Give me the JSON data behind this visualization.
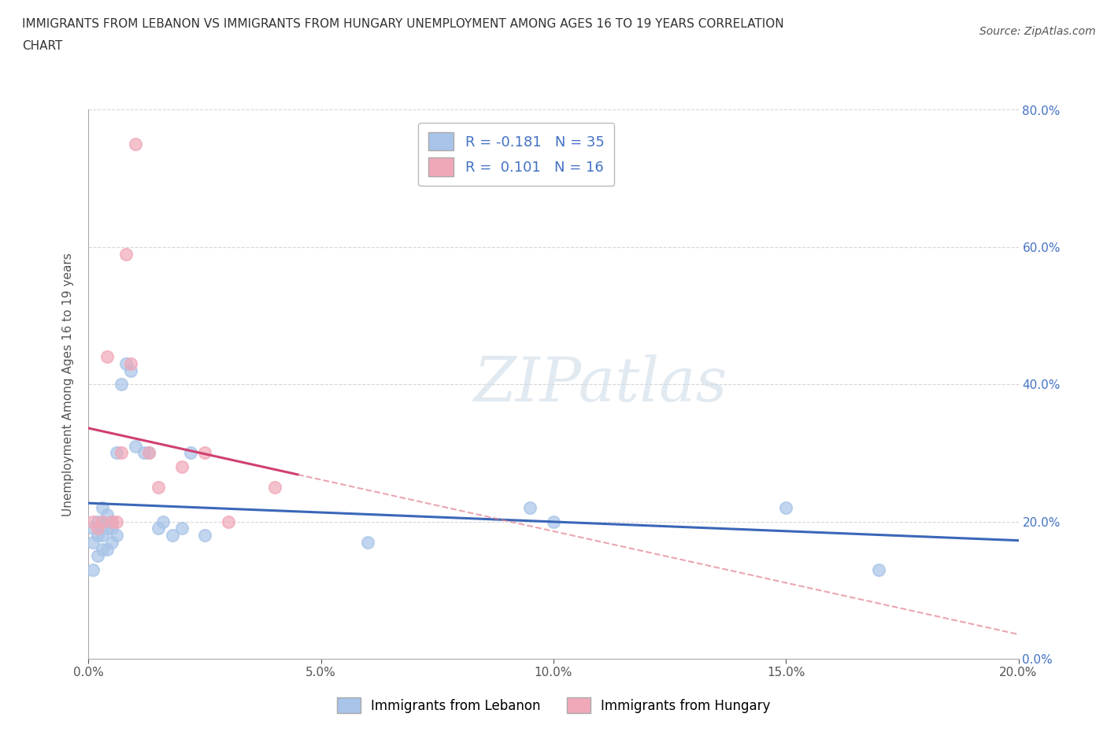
{
  "title_line1": "IMMIGRANTS FROM LEBANON VS IMMIGRANTS FROM HUNGARY UNEMPLOYMENT AMONG AGES 16 TO 19 YEARS CORRELATION",
  "title_line2": "CHART",
  "source": "Source: ZipAtlas.com",
  "xlim": [
    0.0,
    0.2
  ],
  "ylim": [
    0.0,
    0.8
  ],
  "xticks": [
    0.0,
    0.05,
    0.1,
    0.15,
    0.2
  ],
  "yticks": [
    0.0,
    0.2,
    0.4,
    0.6,
    0.8
  ],
  "xlabel_ticks": [
    "0.0%",
    "5.0%",
    "10.0%",
    "15.0%",
    "20.0%"
  ],
  "ylabel_ticks_right": [
    "0.0%",
    "20.0%",
    "40.0%",
    "60.0%",
    "80.0%"
  ],
  "lebanon_x": [
    0.001,
    0.001,
    0.001,
    0.002,
    0.002,
    0.002,
    0.003,
    0.003,
    0.003,
    0.003,
    0.004,
    0.004,
    0.004,
    0.005,
    0.005,
    0.005,
    0.006,
    0.006,
    0.007,
    0.008,
    0.009,
    0.01,
    0.012,
    0.013,
    0.015,
    0.016,
    0.018,
    0.02,
    0.022,
    0.025,
    0.06,
    0.095,
    0.1,
    0.15,
    0.17
  ],
  "lebanon_y": [
    0.19,
    0.17,
    0.13,
    0.2,
    0.18,
    0.15,
    0.22,
    0.2,
    0.18,
    0.16,
    0.21,
    0.19,
    0.16,
    0.19,
    0.17,
    0.2,
    0.18,
    0.3,
    0.4,
    0.43,
    0.42,
    0.31,
    0.3,
    0.3,
    0.19,
    0.2,
    0.18,
    0.19,
    0.3,
    0.18,
    0.17,
    0.22,
    0.2,
    0.22,
    0.13
  ],
  "hungary_x": [
    0.001,
    0.002,
    0.003,
    0.004,
    0.005,
    0.006,
    0.007,
    0.008,
    0.009,
    0.01,
    0.013,
    0.015,
    0.02,
    0.025,
    0.03,
    0.04
  ],
  "hungary_y": [
    0.2,
    0.19,
    0.2,
    0.44,
    0.2,
    0.2,
    0.3,
    0.59,
    0.43,
    0.75,
    0.3,
    0.25,
    0.28,
    0.3,
    0.2,
    0.25
  ],
  "lebanon_color": "#a8c4e8",
  "hungary_color": "#f0a8b8",
  "lebanon_line_color": "#3a67b8",
  "hungary_line_color": "#d04070",
  "hungary_dash_color": "#e08090",
  "r_lebanon": -0.181,
  "n_lebanon": 35,
  "r_hungary": 0.101,
  "n_hungary": 16,
  "watermark": "ZIPatlas",
  "grid_color": "#cccccc",
  "background_color": "#ffffff",
  "right_label_color": "#4472c4",
  "legend_text_color": "#4472c4",
  "title_color": "#333333",
  "axis_label_color": "#555555"
}
